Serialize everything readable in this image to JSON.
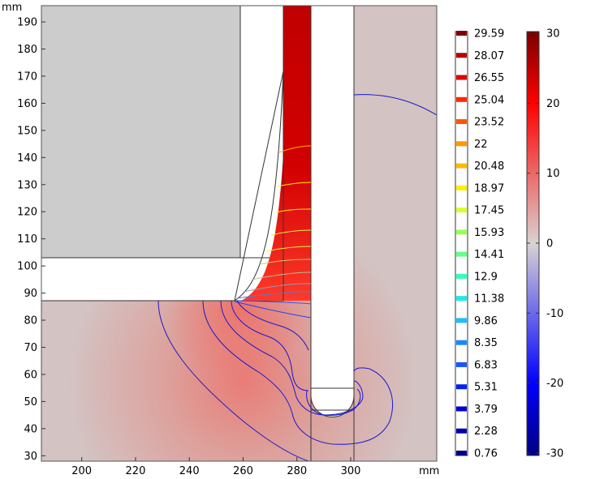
{
  "chart_data": {
    "type": "contour",
    "x_unit": "mm",
    "y_unit": "mm",
    "xlim": [
      185,
      332
    ],
    "ylim": [
      28,
      196
    ],
    "x_ticks": [
      200,
      220,
      240,
      260,
      280,
      300
    ],
    "y_ticks": [
      30,
      40,
      50,
      60,
      70,
      80,
      90,
      100,
      110,
      120,
      130,
      140,
      150,
      160,
      170,
      180,
      190
    ],
    "contour_legend": {
      "levels": [
        "29.59",
        "28.07",
        "26.55",
        "25.04",
        "23.52",
        "22",
        "20.48",
        "18.97",
        "17.45",
        "15.93",
        "14.41",
        "12.9",
        "11.38",
        "9.86",
        "8.35",
        "6.83",
        "5.31",
        "3.79",
        "2.28",
        "0.76"
      ],
      "colors": [
        "#820000",
        "#b30000",
        "#e00000",
        "#ff2a00",
        "#ff5500",
        "#ff9900",
        "#ffbb00",
        "#ffee00",
        "#d8ff30",
        "#99ff55",
        "#66ff88",
        "#33ffbb",
        "#22e8ee",
        "#22bbff",
        "#1a88ff",
        "#1a55ff",
        "#0022ee",
        "#0000cc",
        "#0000aa",
        "#000088"
      ]
    },
    "colorbar": {
      "ticks": [
        30,
        20,
        10,
        0,
        -10,
        -20,
        -30
      ],
      "range": [
        -30,
        30
      ]
    }
  }
}
